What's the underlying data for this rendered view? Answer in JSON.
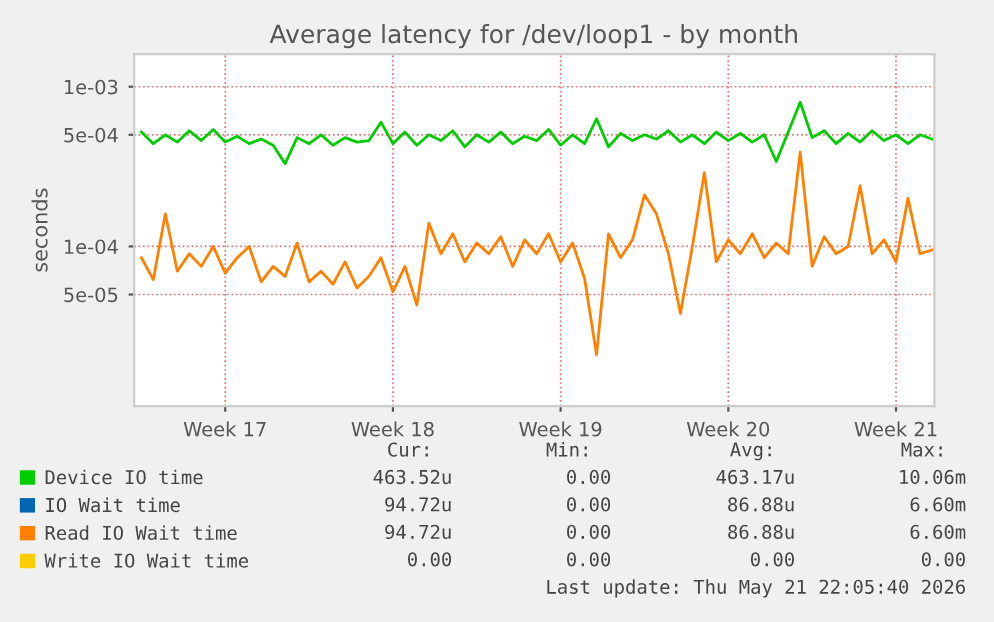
{
  "chart_data": {
    "type": "line",
    "title": "Average latency for /dev/loop1 - by month",
    "ylabel": "seconds",
    "categories": [
      null,
      null,
      null,
      null,
      null,
      null,
      null,
      "Week 17",
      null,
      null,
      null,
      null,
      null,
      null,
      null,
      null,
      null,
      null,
      null,
      null,
      null,
      "Week 18",
      null,
      null,
      null,
      null,
      null,
      null,
      null,
      null,
      null,
      null,
      null,
      null,
      null,
      "Week 19",
      null,
      null,
      null,
      null,
      null,
      null,
      null,
      null,
      null,
      null,
      null,
      null,
      null,
      "Week 20",
      null,
      null,
      null,
      null,
      null,
      null,
      null,
      null,
      null,
      null,
      null,
      null,
      null,
      "Week 21",
      null,
      null,
      null
    ],
    "series": [
      {
        "name": "Device IO time",
        "color": "#00cc00",
        "values": [
          0.00052,
          0.00044,
          0.0005,
          0.00045,
          0.00053,
          0.00046,
          0.00054,
          0.00045,
          0.00049,
          0.00044,
          0.00047,
          0.00043,
          0.00033,
          0.00048,
          0.00044,
          0.0005,
          0.00043,
          0.00048,
          0.00045,
          0.00046,
          0.0006,
          0.00044,
          0.00052,
          0.00043,
          0.0005,
          0.00046,
          0.00053,
          0.00042,
          0.0005,
          0.00045,
          0.00052,
          0.00044,
          0.00049,
          0.00046,
          0.00054,
          0.00043,
          0.0005,
          0.00044,
          0.00063,
          0.00042,
          0.00051,
          0.00046,
          0.0005,
          0.00047,
          0.00053,
          0.00045,
          0.0005,
          0.00044,
          0.00052,
          0.00046,
          0.00051,
          0.00045,
          0.0005,
          0.00034,
          0.00052,
          0.0008,
          0.00048,
          0.00053,
          0.00044,
          0.00051,
          0.00045,
          0.00053,
          0.00046,
          0.0005,
          0.00044,
          0.0005,
          0.00047
        ]
      },
      {
        "name": "IO Wait time",
        "color": "#0066b3",
        "values": [
          null,
          null,
          null,
          null,
          null,
          null,
          null,
          null,
          null,
          null,
          null,
          null,
          null,
          null,
          null,
          null,
          null,
          null,
          null,
          null,
          null,
          null,
          null,
          null,
          null,
          null,
          null,
          null,
          null,
          null,
          null,
          null,
          null,
          null,
          null,
          null,
          null,
          null,
          null,
          null,
          null,
          null,
          null,
          null,
          null,
          null,
          null,
          null,
          null,
          null,
          null,
          null,
          null,
          null,
          null,
          null,
          null,
          null,
          null,
          null,
          null,
          null,
          null,
          null,
          null,
          null,
          null
        ]
      },
      {
        "name": "Read IO Wait time",
        "color": "#ff8000",
        "values": [
          8.5e-05,
          6.2e-05,
          0.00016,
          7e-05,
          9e-05,
          7.5e-05,
          0.0001,
          6.8e-05,
          8.5e-05,
          0.0001,
          6e-05,
          7.5e-05,
          6.5e-05,
          0.000105,
          6e-05,
          7e-05,
          5.8e-05,
          8e-05,
          5.5e-05,
          6.5e-05,
          8.5e-05,
          5.2e-05,
          7.5e-05,
          4.3e-05,
          0.00014,
          9e-05,
          0.00012,
          8e-05,
          0.000105,
          9e-05,
          0.000115,
          7.5e-05,
          0.00011,
          9e-05,
          0.00012,
          8e-05,
          0.000105,
          6.3e-05,
          2.1e-05,
          0.00012,
          8.5e-05,
          0.00011,
          0.00021,
          0.00016,
          9e-05,
          3.8e-05,
          0.0001,
          0.00029,
          8e-05,
          0.00011,
          9e-05,
          0.00012,
          8.5e-05,
          0.000105,
          9e-05,
          0.00039,
          7.5e-05,
          0.000115,
          9e-05,
          0.0001,
          0.00024,
          9e-05,
          0.00011,
          8e-05,
          0.0002,
          9e-05,
          9.5e-05
        ]
      },
      {
        "name": "Write IO Wait time",
        "color": "#ffcc00",
        "values": [
          null,
          null,
          null,
          null,
          null,
          null,
          null,
          null,
          null,
          null,
          null,
          null,
          null,
          null,
          null,
          null,
          null,
          null,
          null,
          null,
          null,
          null,
          null,
          null,
          null,
          null,
          null,
          null,
          null,
          null,
          null,
          null,
          null,
          null,
          null,
          null,
          null,
          null,
          null,
          null,
          null,
          null,
          null,
          null,
          null,
          null,
          null,
          null,
          null,
          null,
          null,
          null,
          null,
          null,
          null,
          null,
          null,
          null,
          null,
          null,
          null,
          null,
          null,
          null,
          null,
          null,
          null
        ]
      }
    ],
    "log": "y",
    "ylim": [
      1e-05,
      0.0016
    ],
    "yticks": [
      {
        "value": 5e-05,
        "label": "5e-05"
      },
      {
        "value": 0.0001,
        "label": "1e-04"
      },
      {
        "value": 0.0005,
        "label": "5e-04"
      },
      {
        "value": 0.001,
        "label": "1e-03"
      }
    ],
    "grid": true,
    "legend": "bottom",
    "annotations": [
      "Cur:",
      "Min:",
      "Avg:",
      "Max:",
      "463.52u",
      "0.00",
      "463.17u",
      "10.06m",
      "94.72u",
      "0.00",
      "86.88u",
      "6.60m",
      "94.72u",
      "0.00",
      "86.88u",
      "6.60m",
      "0.00",
      "0.00",
      "0.00",
      "0.00",
      "Last update: Thu May 21 22:05:40 2026"
    ]
  }
}
